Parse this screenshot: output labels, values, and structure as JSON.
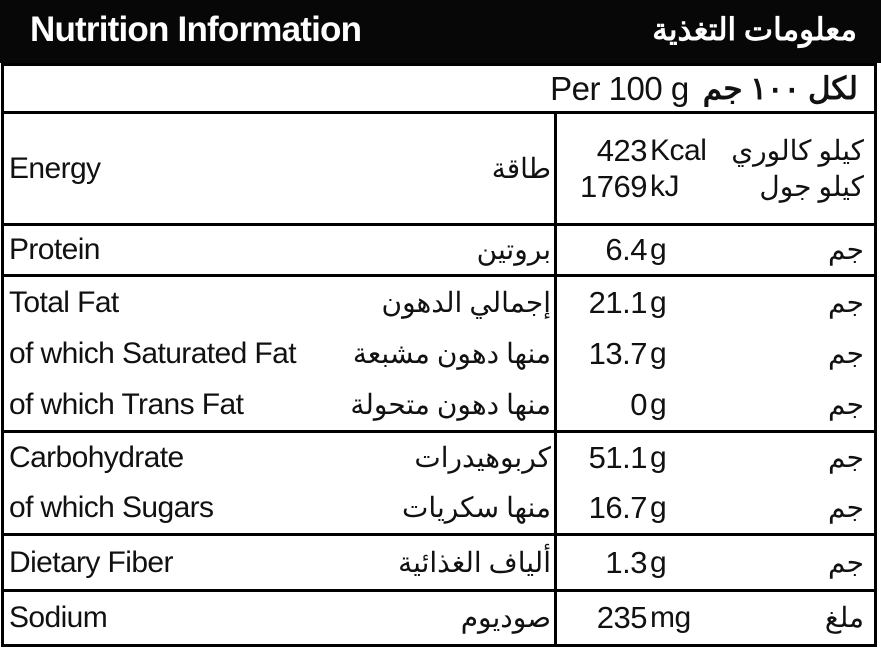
{
  "header": {
    "title_en": "Nutrition Information",
    "title_ar": "معلومات التغذية"
  },
  "per_serving": {
    "en": "Per 100 g",
    "ar": "لكل ١٠٠ جم"
  },
  "energy": {
    "label_en": "Energy",
    "label_ar": "طاقة",
    "lines": [
      {
        "value": "423",
        "unit_en": "Kcal",
        "unit_ar": "كيلو كالوري"
      },
      {
        "value": "1769",
        "unit_en": "kJ",
        "unit_ar": "كيلو جول"
      }
    ]
  },
  "blocks": [
    {
      "rows": [
        {
          "label_en": "Protein",
          "label_ar": "بروتين",
          "value": "6.4",
          "unit_en": "g",
          "unit_ar": "جم"
        }
      ]
    },
    {
      "rows": [
        {
          "label_en": "Total Fat",
          "label_ar": "إجمالي الدهون",
          "value": "21.1",
          "unit_en": "g",
          "unit_ar": "جم"
        },
        {
          "label_en": "of which Saturated Fat",
          "label_ar": "منها دهون مشبعة",
          "value": "13.7",
          "unit_en": "g",
          "unit_ar": "جم"
        },
        {
          "label_en": "of which Trans Fat",
          "label_ar": "منها دهون متحولة",
          "value": "0",
          "unit_en": "g",
          "unit_ar": "جم"
        }
      ]
    },
    {
      "rows": [
        {
          "label_en": "Carbohydrate",
          "label_ar": "كربوهيدرات",
          "value": "51.1",
          "unit_en": "g",
          "unit_ar": "جم"
        },
        {
          "label_en": "of which Sugars",
          "label_ar": "منها سكريات",
          "value": "16.7",
          "unit_en": "g",
          "unit_ar": "جم"
        }
      ]
    },
    {
      "rows": [
        {
          "label_en": "Dietary Fiber",
          "label_ar": "ألياف الغذائية",
          "value": "1.3",
          "unit_en": "g",
          "unit_ar": "جم"
        }
      ]
    },
    {
      "rows": [
        {
          "label_en": "Sodium",
          "label_ar": "صوديوم",
          "value": "235",
          "unit_en": "mg",
          "unit_ar": "ملغ"
        }
      ]
    }
  ],
  "colors": {
    "header_bg": "#070707",
    "header_text": "#ffffff",
    "border": "#000000",
    "text": "#111111"
  }
}
